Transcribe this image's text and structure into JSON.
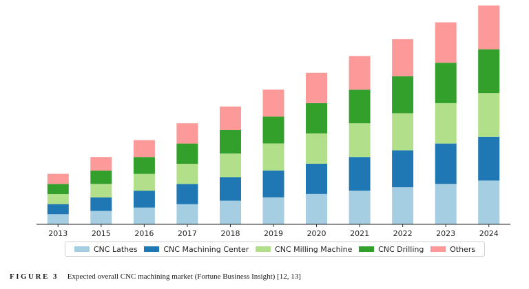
{
  "chart_data": {
    "type": "bar",
    "stacked": true,
    "categories": [
      "2013",
      "2015",
      "2016",
      "2017",
      "2018",
      "2019",
      "2020",
      "2021",
      "2022",
      "2023",
      "2024"
    ],
    "series": [
      {
        "name": "CNC Lathes",
        "color": "#a6cee3",
        "values": [
          3.0,
          4.0,
          5.0,
          6.0,
          7.0,
          8.0,
          9.0,
          10.0,
          11.0,
          12.0,
          13.0
        ]
      },
      {
        "name": "CNC Machining Center",
        "color": "#1f78b4",
        "values": [
          3.0,
          4.0,
          5.0,
          6.0,
          7.0,
          8.0,
          9.0,
          10.0,
          11.0,
          12.0,
          13.0
        ]
      },
      {
        "name": "CNC Milling Machine",
        "color": "#b2df8a",
        "values": [
          3.0,
          4.0,
          5.0,
          6.0,
          7.0,
          8.0,
          9.0,
          10.0,
          11.0,
          12.0,
          13.0
        ]
      },
      {
        "name": "CNC Drilling",
        "color": "#33a02c",
        "values": [
          3.0,
          4.0,
          5.0,
          6.0,
          7.0,
          8.0,
          9.0,
          10.0,
          11.0,
          12.0,
          13.0
        ]
      },
      {
        "name": "Others",
        "color": "#fb9a99",
        "values": [
          3.0,
          4.0,
          5.0,
          6.0,
          7.0,
          8.0,
          9.0,
          10.0,
          11.0,
          12.0,
          13.0
        ]
      }
    ],
    "ylim": [
      0,
      65
    ],
    "yaxis_visible": false,
    "legend_position": "bottom"
  },
  "caption": {
    "label": "FIGURE 3",
    "text": "Expected overall CNC machining market (Fortune Business Insight) [12, 13]"
  }
}
